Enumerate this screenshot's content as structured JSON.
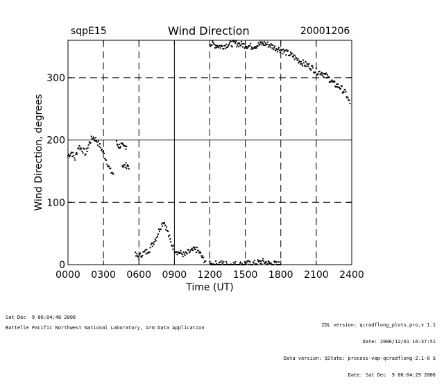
{
  "header": {
    "site": "sqpE15",
    "title": "Wind Direction",
    "date": "20001206"
  },
  "footer": {
    "left_line1": "Sat Dec  9 06:04:48 2006",
    "left_line2": "Battelle Pacific Northwest National Laboratory, Arm Data Application",
    "right_line1": "IDL version: qcradflong_plots.pro,v 1.1",
    "right_line2": "Date: 2006/12/01 16:37:51",
    "right_line3": "Data version: $State: process-vap-qcradflong-2.1-0 $",
    "right_line4": "Date: Sat Dec  9 06:04:29 2006"
  },
  "chart_data": {
    "type": "scatter",
    "title": "Wind Direction",
    "xlabel": "Time (UT)",
    "ylabel": "Wind Direction, degrees",
    "xlim": [
      0,
      24
    ],
    "ylim": [
      0,
      360
    ],
    "x_ticks": [
      0,
      3,
      6,
      9,
      12,
      15,
      18,
      21,
      24
    ],
    "x_tick_labels": [
      "0000",
      "0300",
      "0600",
      "0900",
      "1200",
      "1500",
      "1800",
      "2100",
      "2400"
    ],
    "y_ticks": [
      0,
      100,
      200,
      300
    ],
    "y_tick_labels": [
      "0",
      "100",
      "200",
      "300"
    ],
    "grid": true,
    "marker_color": "#000000",
    "segments": [
      {
        "x": [
          0.0,
          0.3,
          0.6,
          0.9,
          1.2,
          1.5,
          1.8,
          2.1,
          2.4,
          2.7,
          3.0,
          3.3,
          3.6,
          3.9
        ],
        "y": [
          175,
          180,
          170,
          190,
          185,
          178,
          195,
          205,
          200,
          190,
          180,
          165,
          150,
          145
        ]
      },
      {
        "x": [
          4.1,
          4.3,
          4.5,
          4.7,
          4.9,
          5.0
        ],
        "y": [
          195,
          190,
          192,
          188,
          190,
          193
        ]
      },
      {
        "x": [
          4.6,
          4.8,
          5.0,
          5.2
        ],
        "y": [
          160,
          158,
          160,
          157
        ]
      },
      {
        "x": [
          5.7,
          6.0,
          6.3,
          6.6,
          6.9,
          7.2,
          7.5,
          7.8,
          8.1,
          8.4,
          8.7,
          9.0,
          9.3,
          9.6,
          9.9,
          10.2,
          10.5,
          10.8,
          11.1,
          11.4,
          11.7
        ],
        "y": [
          15,
          12,
          18,
          20,
          25,
          35,
          45,
          60,
          70,
          55,
          35,
          25,
          20,
          18,
          15,
          20,
          22,
          25,
          20,
          10,
          5
        ]
      },
      {
        "x": [
          12.0,
          12.5,
          13.0,
          13.5,
          14.0,
          14.5,
          15.0,
          15.5,
          16.0,
          16.5,
          17.0,
          17.5,
          18.0
        ],
        "y": [
          0,
          1,
          2,
          0,
          1,
          0,
          2,
          1,
          3,
          5,
          2,
          1,
          0
        ]
      },
      {
        "x": [
          12.0,
          12.5,
          13.0,
          13.5,
          14.0,
          14.5,
          15.0,
          15.5,
          16.0,
          16.5,
          17.0,
          17.5,
          18.0,
          18.5,
          19.0,
          19.5,
          20.0,
          20.5,
          21.0,
          21.5,
          22.0,
          22.5,
          23.0,
          23.5,
          23.9
        ],
        "y": [
          355,
          352,
          350,
          353,
          355,
          354,
          352,
          350,
          352,
          355,
          353,
          348,
          345,
          340,
          335,
          328,
          322,
          318,
          310,
          308,
          300,
          290,
          285,
          275,
          255
        ]
      }
    ]
  }
}
